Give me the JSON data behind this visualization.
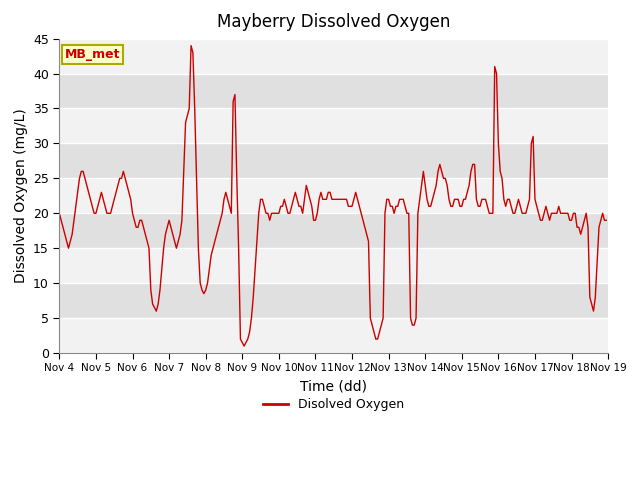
{
  "title": "Mayberry Dissolved Oxygen",
  "xlabel": "Time (dd)",
  "ylabel": "Dissolved Oxygen (mg/L)",
  "legend_label": "Disolved Oxygen",
  "site_label": "MB_met",
  "ylim": [
    0,
    45
  ],
  "line_color": "#cc0000",
  "x_start": 4.0,
  "x_end": 19.0,
  "xticks": [
    4,
    5,
    6,
    7,
    8,
    9,
    10,
    11,
    12,
    13,
    14,
    15,
    16,
    17,
    18,
    19
  ],
  "xtick_labels": [
    "Nov 4",
    "Nov 5",
    "Nov 6",
    "Nov 7",
    "Nov 8",
    "Nov 9",
    "Nov 10",
    "Nov 11",
    "Nov 12",
    "Nov 13",
    "Nov 14",
    "Nov 15",
    "Nov 16",
    "Nov 17",
    "Nov 18",
    "Nov 19"
  ],
  "yticks": [
    0,
    5,
    10,
    15,
    20,
    25,
    30,
    35,
    40,
    45
  ],
  "band_colors": [
    "#e8e8e8",
    "#d8d8d8"
  ],
  "data_x": [
    4.0,
    4.05,
    4.1,
    4.15,
    4.2,
    4.25,
    4.3,
    4.35,
    4.4,
    4.45,
    4.5,
    4.55,
    4.6,
    4.65,
    4.7,
    4.75,
    4.8,
    4.85,
    4.9,
    4.95,
    5.0,
    5.05,
    5.1,
    5.15,
    5.2,
    5.25,
    5.3,
    5.35,
    5.4,
    5.45,
    5.5,
    5.55,
    5.6,
    5.65,
    5.7,
    5.75,
    5.8,
    5.85,
    5.9,
    5.95,
    6.0,
    6.05,
    6.1,
    6.15,
    6.2,
    6.25,
    6.3,
    6.35,
    6.4,
    6.45,
    6.5,
    6.55,
    6.6,
    6.65,
    6.7,
    6.75,
    6.8,
    6.85,
    6.9,
    6.95,
    7.0,
    7.05,
    7.1,
    7.15,
    7.2,
    7.25,
    7.3,
    7.35,
    7.4,
    7.45,
    7.5,
    7.55,
    7.6,
    7.65,
    7.7,
    7.75,
    7.8,
    7.85,
    7.9,
    7.95,
    8.0,
    8.05,
    8.1,
    8.15,
    8.2,
    8.25,
    8.3,
    8.35,
    8.4,
    8.45,
    8.5,
    8.55,
    8.6,
    8.65,
    8.7,
    8.75,
    8.8,
    8.85,
    8.9,
    8.95,
    9.0,
    9.05,
    9.1,
    9.15,
    9.2,
    9.25,
    9.3,
    9.35,
    9.4,
    9.45,
    9.5,
    9.55,
    9.6,
    9.65,
    9.7,
    9.75,
    9.8,
    9.85,
    9.9,
    9.95,
    10.0,
    10.05,
    10.1,
    10.15,
    10.2,
    10.25,
    10.3,
    10.35,
    10.4,
    10.45,
    10.5,
    10.55,
    10.6,
    10.65,
    10.7,
    10.75,
    10.8,
    10.85,
    10.9,
    10.95,
    11.0,
    11.05,
    11.1,
    11.15,
    11.2,
    11.25,
    11.3,
    11.35,
    11.4,
    11.45,
    11.5,
    11.55,
    11.6,
    11.65,
    11.7,
    11.75,
    11.8,
    11.85,
    11.9,
    11.95,
    12.0,
    12.05,
    12.1,
    12.15,
    12.2,
    12.25,
    12.3,
    12.35,
    12.4,
    12.45,
    12.5,
    12.55,
    12.6,
    12.65,
    12.7,
    12.75,
    12.8,
    12.85,
    12.9,
    12.95,
    13.0,
    13.05,
    13.1,
    13.15,
    13.2,
    13.25,
    13.3,
    13.35,
    13.4,
    13.45,
    13.5,
    13.55,
    13.6,
    13.65,
    13.7,
    13.75,
    13.8,
    13.85,
    13.9,
    13.95,
    14.0,
    14.05,
    14.1,
    14.15,
    14.2,
    14.25,
    14.3,
    14.35,
    14.4,
    14.45,
    14.5,
    14.55,
    14.6,
    14.65,
    14.7,
    14.75,
    14.8,
    14.85,
    14.9,
    14.95,
    15.0,
    15.05,
    15.1,
    15.15,
    15.2,
    15.25,
    15.3,
    15.35,
    15.4,
    15.45,
    15.5,
    15.55,
    15.6,
    15.65,
    15.7,
    15.75,
    15.8,
    15.85,
    15.9,
    15.95,
    16.0,
    16.05,
    16.1,
    16.15,
    16.2,
    16.25,
    16.3,
    16.35,
    16.4,
    16.45,
    16.5,
    16.55,
    16.6,
    16.65,
    16.7,
    16.75,
    16.8,
    16.85,
    16.9,
    16.95,
    17.0,
    17.05,
    17.1,
    17.15,
    17.2,
    17.25,
    17.3,
    17.35,
    17.4,
    17.45,
    17.5,
    17.55,
    17.6,
    17.65,
    17.7,
    17.75,
    17.8,
    17.85,
    17.9,
    17.95,
    18.0,
    18.05,
    18.1,
    18.15,
    18.2,
    18.25,
    18.3,
    18.35,
    18.4,
    18.45,
    18.5,
    18.55,
    18.6,
    18.65,
    18.7,
    18.75,
    18.8,
    18.85,
    18.9,
    18.95
  ],
  "data_y": [
    20,
    19,
    18,
    17,
    16,
    15,
    16,
    17,
    19,
    21,
    23,
    25,
    26,
    26,
    25,
    24,
    23,
    22,
    21,
    20,
    20,
    21,
    22,
    23,
    22,
    21,
    20,
    20,
    20,
    21,
    22,
    23,
    24,
    25,
    25,
    26,
    25,
    24,
    23,
    22,
    20,
    19,
    18,
    18,
    19,
    19,
    18,
    17,
    16,
    15,
    9,
    7,
    6.5,
    6,
    7,
    9,
    12,
    15,
    17,
    18,
    19,
    18,
    17,
    16,
    15,
    16,
    17,
    19,
    26,
    33,
    34,
    35,
    44,
    43,
    35,
    25,
    15,
    10,
    9,
    8.5,
    9,
    10,
    12,
    14,
    15,
    16,
    17,
    18,
    19,
    20,
    22,
    23,
    22,
    21,
    20,
    36,
    37,
    25,
    15,
    2,
    1.5,
    1,
    1.5,
    2,
    3,
    5,
    8,
    12,
    16,
    20,
    22,
    22,
    21,
    20,
    20,
    19,
    20,
    20,
    20,
    20,
    20,
    21,
    21,
    22,
    21,
    20,
    20,
    21,
    22,
    23,
    22,
    21,
    21,
    20,
    22,
    24,
    23,
    22,
    21,
    19,
    19,
    20,
    22,
    23,
    22,
    22,
    22,
    23,
    23,
    22,
    22,
    22,
    22,
    22,
    22,
    22,
    22,
    22,
    21,
    21,
    21,
    22,
    23,
    22,
    21,
    20,
    19,
    18,
    17,
    16,
    5,
    4,
    3,
    2,
    2,
    3,
    4,
    5,
    20,
    22,
    22,
    21,
    21,
    20,
    21,
    21,
    22,
    22,
    22,
    21,
    20,
    20,
    5,
    4,
    4,
    5,
    20,
    22,
    24,
    26,
    24,
    22,
    21,
    21,
    22,
    23,
    24,
    26,
    27,
    26,
    25,
    25,
    24,
    22,
    21,
    21,
    22,
    22,
    22,
    21,
    21,
    22,
    22,
    23,
    24,
    26,
    27,
    27,
    22,
    21,
    21,
    22,
    22,
    22,
    21,
    20,
    20,
    20,
    41,
    40,
    30,
    26,
    25,
    22,
    21,
    22,
    22,
    21,
    20,
    20,
    21,
    22,
    21,
    20,
    20,
    20,
    21,
    22,
    30,
    31,
    22,
    21,
    20,
    19,
    19,
    20,
    21,
    20,
    19,
    20,
    20,
    20,
    20,
    21,
    20,
    20,
    20,
    20,
    20,
    19,
    19,
    20,
    20,
    18,
    18,
    17,
    18,
    19,
    20,
    18,
    8,
    7,
    6,
    8,
    13,
    18,
    19,
    20,
    19,
    19
  ]
}
